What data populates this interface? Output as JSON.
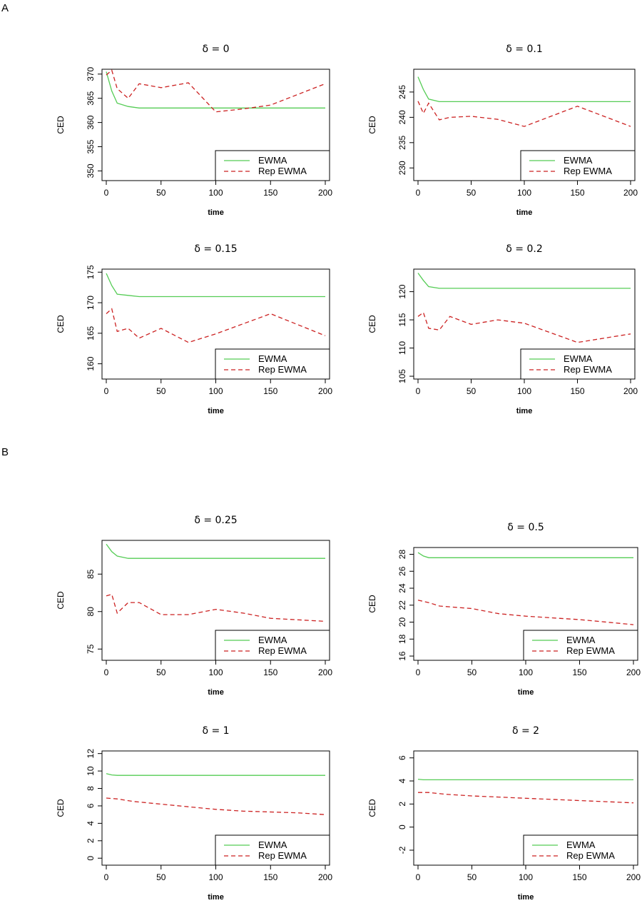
{
  "panel_labels": [
    "A",
    "B"
  ],
  "chart_data": [
    {
      "type": "line",
      "title": "δ = 0",
      "xlabel": "time",
      "ylabel": "CED",
      "xlim": [
        0,
        200
      ],
      "ylim": [
        348,
        371
      ],
      "xticks": [
        "0",
        "50",
        "100",
        "150",
        "200"
      ],
      "yticks": [
        "350",
        "355",
        "360",
        "365",
        "370"
      ],
      "legend": [
        "EWMA",
        "Rep EWMA"
      ],
      "legend_position": "bottom-right",
      "series": [
        {
          "name": "EWMA",
          "color": "#55cc55",
          "dash": false,
          "x": [
            0,
            5,
            10,
            20,
            30,
            50,
            75,
            100,
            125,
            150,
            175,
            200
          ],
          "y": [
            370.5,
            366.5,
            364.0,
            363.3,
            363.0,
            363.0,
            363.0,
            363.0,
            363.0,
            363.0,
            363.0,
            363.0
          ]
        },
        {
          "name": "Rep EWMA",
          "color": "#cc2222",
          "dash": true,
          "x": [
            0,
            5,
            10,
            20,
            30,
            50,
            75,
            100,
            125,
            150,
            200
          ],
          "y": [
            369.8,
            370.8,
            367.0,
            365.0,
            368.0,
            367.2,
            368.2,
            362.2,
            362.8,
            363.6,
            368.0
          ]
        }
      ]
    },
    {
      "type": "line",
      "title": "δ = 0.1",
      "xlabel": "time",
      "ylabel": "CED",
      "xlim": [
        0,
        200
      ],
      "ylim": [
        227.5,
        249.5
      ],
      "xticks": [
        "0",
        "50",
        "100",
        "150",
        "200"
      ],
      "yticks": [
        "230",
        "235",
        "240",
        "245"
      ],
      "legend": [
        "EWMA",
        "Rep EWMA"
      ],
      "legend_position": "bottom-right",
      "series": [
        {
          "name": "EWMA",
          "color": "#55cc55",
          "dash": false,
          "x": [
            0,
            5,
            10,
            20,
            30,
            50,
            100,
            150,
            200
          ],
          "y": [
            248.0,
            245.5,
            243.6,
            243.1,
            243.1,
            243.1,
            243.1,
            243.1,
            243.1
          ]
        },
        {
          "name": "Rep EWMA",
          "color": "#cc2222",
          "dash": true,
          "x": [
            0,
            5,
            10,
            20,
            30,
            50,
            75,
            100,
            150,
            200
          ],
          "y": [
            243.2,
            240.8,
            242.8,
            239.5,
            240.0,
            240.2,
            239.6,
            238.2,
            242.2,
            238.2
          ]
        }
      ]
    },
    {
      "type": "line",
      "title": "δ = 0.15",
      "xlabel": "time",
      "ylabel": "CED",
      "xlim": [
        0,
        200
      ],
      "ylim": [
        157.5,
        175.5
      ],
      "xticks": [
        "0",
        "50",
        "100",
        "150",
        "200"
      ],
      "yticks": [
        "160",
        "165",
        "170",
        "175"
      ],
      "legend": [
        "EWMA",
        "Rep EWMA"
      ],
      "legend_position": "bottom-right",
      "series": [
        {
          "name": "EWMA",
          "color": "#55cc55",
          "dash": false,
          "x": [
            0,
            5,
            10,
            20,
            30,
            50,
            100,
            150,
            200
          ],
          "y": [
            174.8,
            172.8,
            171.4,
            171.2,
            171.0,
            171.0,
            171.0,
            171.0,
            171.0
          ]
        },
        {
          "name": "Rep EWMA",
          "color": "#cc2222",
          "dash": true,
          "x": [
            0,
            5,
            10,
            20,
            30,
            50,
            75,
            100,
            150,
            200
          ],
          "y": [
            168.2,
            169.0,
            165.3,
            165.8,
            164.2,
            165.8,
            163.5,
            164.9,
            168.2,
            164.6
          ]
        }
      ]
    },
    {
      "type": "line",
      "title": "δ = 0.2",
      "xlabel": "time",
      "ylabel": "CED",
      "xlim": [
        0,
        200
      ],
      "ylim": [
        104.5,
        124.0
      ],
      "xticks": [
        "0",
        "50",
        "100",
        "150",
        "200"
      ],
      "yticks": [
        "105",
        "110",
        "115",
        "120"
      ],
      "legend": [
        "EWMA",
        "Rep EWMA"
      ],
      "legend_position": "bottom-right",
      "series": [
        {
          "name": "EWMA",
          "color": "#55cc55",
          "dash": false,
          "x": [
            0,
            5,
            10,
            20,
            30,
            50,
            100,
            150,
            200
          ],
          "y": [
            123.3,
            122.0,
            120.9,
            120.6,
            120.6,
            120.6,
            120.6,
            120.6,
            120.6
          ]
        },
        {
          "name": "Rep EWMA",
          "color": "#cc2222",
          "dash": true,
          "x": [
            0,
            5,
            10,
            20,
            30,
            50,
            75,
            100,
            150,
            200
          ],
          "y": [
            115.6,
            116.3,
            113.5,
            113.2,
            115.6,
            114.2,
            115.0,
            114.4,
            111.0,
            112.5
          ]
        }
      ]
    },
    {
      "type": "line",
      "title": "δ = 0.25",
      "xlabel": "time",
      "ylabel": "CED",
      "xlim": [
        0,
        200
      ],
      "ylim": [
        73.5,
        89.5
      ],
      "xticks": [
        "0",
        "50",
        "100",
        "150",
        "200"
      ],
      "yticks": [
        "75",
        "80",
        "85"
      ],
      "legend": [
        "EWMA",
        "Rep EWMA"
      ],
      "legend_position": "bottom-right",
      "series": [
        {
          "name": "EWMA",
          "color": "#55cc55",
          "dash": false,
          "x": [
            0,
            5,
            10,
            20,
            30,
            50,
            100,
            150,
            200
          ],
          "y": [
            89.0,
            88.0,
            87.4,
            87.1,
            87.1,
            87.1,
            87.1,
            87.1,
            87.1
          ]
        },
        {
          "name": "Rep EWMA",
          "color": "#cc2222",
          "dash": true,
          "x": [
            0,
            5,
            10,
            20,
            30,
            50,
            75,
            100,
            125,
            150,
            200
          ],
          "y": [
            82.1,
            82.3,
            79.8,
            81.2,
            81.2,
            79.6,
            79.6,
            80.3,
            79.8,
            79.1,
            78.7
          ]
        }
      ]
    },
    {
      "type": "line",
      "title": "δ = 0.5",
      "xlabel": "time",
      "ylabel": "CED",
      "xlim": [
        0,
        200
      ],
      "ylim": [
        15.5,
        28.8
      ],
      "xticks": [
        "0",
        "50",
        "100",
        "150",
        "200"
      ],
      "yticks": [
        "16",
        "18",
        "20",
        "22",
        "24",
        "26",
        "28"
      ],
      "legend": [
        "EWMA",
        "Rep EWMA"
      ],
      "legend_position": "bottom-right",
      "series": [
        {
          "name": "EWMA",
          "color": "#55cc55",
          "dash": false,
          "x": [
            0,
            5,
            10,
            20,
            50,
            100,
            150,
            200
          ],
          "y": [
            28.2,
            27.8,
            27.6,
            27.6,
            27.6,
            27.6,
            27.6,
            27.6
          ]
        },
        {
          "name": "Rep EWMA",
          "color": "#cc2222",
          "dash": true,
          "x": [
            0,
            10,
            20,
            30,
            50,
            75,
            100,
            125,
            150,
            175,
            200
          ],
          "y": [
            22.6,
            22.3,
            21.9,
            21.8,
            21.6,
            21.0,
            20.7,
            20.5,
            20.3,
            20.0,
            19.7
          ]
        }
      ]
    },
    {
      "type": "line",
      "title": "δ = 1",
      "xlabel": "time",
      "ylabel": "CED",
      "xlim": [
        0,
        200
      ],
      "ylim": [
        -0.8,
        12.3
      ],
      "xticks": [
        "0",
        "50",
        "100",
        "150",
        "200"
      ],
      "yticks": [
        "0",
        "2",
        "4",
        "6",
        "8",
        "10",
        "12"
      ],
      "legend": [
        "EWMA",
        "Rep EWMA"
      ],
      "legend_position": "bottom-right",
      "series": [
        {
          "name": "EWMA",
          "color": "#55cc55",
          "dash": false,
          "x": [
            0,
            5,
            10,
            50,
            100,
            150,
            200
          ],
          "y": [
            9.7,
            9.55,
            9.5,
            9.5,
            9.5,
            9.5,
            9.5
          ]
        },
        {
          "name": "Rep EWMA",
          "color": "#cc2222",
          "dash": true,
          "x": [
            0,
            10,
            25,
            50,
            75,
            100,
            125,
            150,
            175,
            200
          ],
          "y": [
            6.9,
            6.8,
            6.5,
            6.2,
            5.9,
            5.6,
            5.4,
            5.3,
            5.2,
            5.0
          ]
        }
      ]
    },
    {
      "type": "line",
      "title": "δ = 2",
      "xlabel": "time",
      "ylabel": "CED",
      "xlim": [
        0,
        200
      ],
      "ylim": [
        -3.3,
        6.6
      ],
      "xticks": [
        "0",
        "50",
        "100",
        "150",
        "200"
      ],
      "yticks": [
        "-2",
        "0",
        "2",
        "4",
        "6"
      ],
      "legend": [
        "EWMA",
        "Rep EWMA"
      ],
      "legend_position": "bottom-right",
      "series": [
        {
          "name": "EWMA",
          "color": "#55cc55",
          "dash": false,
          "x": [
            0,
            5,
            10,
            50,
            100,
            150,
            200
          ],
          "y": [
            4.15,
            4.1,
            4.1,
            4.1,
            4.1,
            4.1,
            4.1
          ]
        },
        {
          "name": "Rep EWMA",
          "color": "#cc2222",
          "dash": true,
          "x": [
            0,
            10,
            25,
            50,
            75,
            100,
            125,
            150,
            175,
            200
          ],
          "y": [
            3.0,
            3.0,
            2.85,
            2.7,
            2.6,
            2.5,
            2.4,
            2.3,
            2.2,
            2.1
          ]
        }
      ]
    }
  ]
}
